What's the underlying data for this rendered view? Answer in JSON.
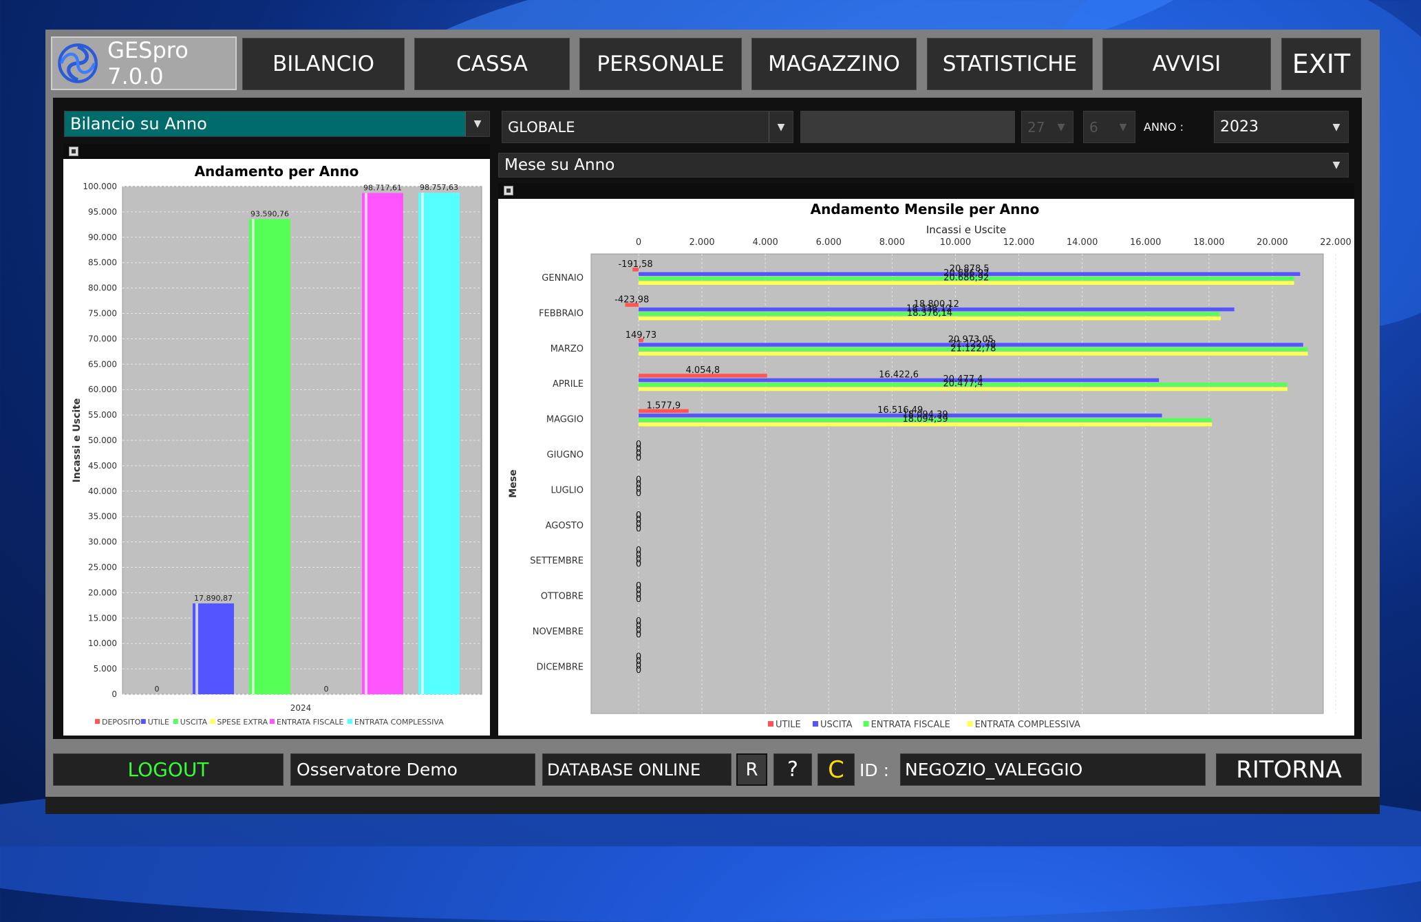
{
  "app": {
    "title": "GESpro 7.0.0"
  },
  "top_nav": {
    "items": [
      {
        "label": "BILANCIO",
        "name": "nav-bilancio"
      },
      {
        "label": "CASSA",
        "name": "nav-cassa"
      },
      {
        "label": "PERSONALE",
        "name": "nav-personale"
      },
      {
        "label": "MAGAZZINO",
        "name": "nav-magazzino"
      },
      {
        "label": "STATISTICHE",
        "name": "nav-statistiche"
      },
      {
        "label": "AVVISI",
        "name": "nav-avvisi"
      }
    ],
    "exit_label": "EXIT"
  },
  "filters": {
    "view_mode": "Bilancio su Anno",
    "scope": "GLOBALE",
    "text_field": "",
    "day": "27",
    "month": "6",
    "year_label": "ANNO :",
    "year": "2023",
    "sub_view": "Mese su Anno"
  },
  "colors": {
    "deposito": "#ff5555",
    "utile": "#5555ff",
    "uscita": "#55ff55",
    "spese_extra": "#ffff55",
    "entrata_fiscale": "#ff55ff",
    "entrata_complessiva": "#55ffff",
    "content_bg": "#111111",
    "plot_bg": "#c0c0c0",
    "view_combo_bg": "#006b6b",
    "logout_text": "#33ff33",
    "c_button_text": "#ffdd00"
  },
  "chart_data": [
    {
      "type": "bar",
      "title": "Andamento  per Anno",
      "ylabel": "Incassi e Uscite",
      "xlabel": "",
      "categories": [
        "2024"
      ],
      "ylim": [
        0,
        100000
      ],
      "y_ticks": [
        "0",
        "5.000",
        "10.000",
        "15.000",
        "20.000",
        "25.000",
        "30.000",
        "35.000",
        "40.000",
        "45.000",
        "50.000",
        "55.000",
        "60.000",
        "65.000",
        "70.000",
        "75.000",
        "80.000",
        "85.000",
        "90.000",
        "95.000",
        "100.000"
      ],
      "grid": true,
      "legend_position": "bottom",
      "series": [
        {
          "name": "DEPOSITO",
          "key": "deposito",
          "value": 0,
          "label": "0"
        },
        {
          "name": "UTILE",
          "key": "utile",
          "value": 17890.87,
          "label": "17.890,87"
        },
        {
          "name": "USCITA",
          "key": "uscita",
          "value": 93590.76,
          "label": "93.590,76"
        },
        {
          "name": "SPESE EXTRA",
          "key": "spese_extra",
          "value": 0,
          "label": "0"
        },
        {
          "name": "ENTRATA FISCALE",
          "key": "entrata_fiscale",
          "value": 98717.61,
          "label": "98.717,61"
        },
        {
          "name": "ENTRATA COMPLESSIVA",
          "key": "entrata_complessiva",
          "value": 98757.63,
          "label": "98.757,63"
        }
      ]
    },
    {
      "type": "bar",
      "orientation": "horizontal",
      "title": "Andamento Mensile per Anno",
      "xlabel": "Incassi e Uscite",
      "ylabel": "Mese",
      "xlim": [
        0,
        22000
      ],
      "x_ticks": [
        "0",
        "2.000",
        "4.000",
        "6.000",
        "8.000",
        "10.000",
        "12.000",
        "14.000",
        "16.000",
        "18.000",
        "20.000",
        "22.000"
      ],
      "grid": true,
      "legend_position": "bottom",
      "categories": [
        "GENNAIO",
        "FEBBRAIO",
        "MARZO",
        "APRILE",
        "MAGGIO",
        "GIUGNO",
        "LUGLIO",
        "AGOSTO",
        "SETTEMBRE",
        "OTTOBRE",
        "NOVEMBRE",
        "DICEMBRE"
      ],
      "series": [
        {
          "name": "UTILE",
          "key": "deposito",
          "values": [
            -191.58,
            -423.98,
            149.73,
            4054.8,
            1577.9,
            0,
            0,
            0,
            0,
            0,
            0,
            0
          ],
          "labels": [
            "-191,58",
            "-423,98",
            "149,73",
            "4.054,8",
            "1.577,9",
            "0",
            "0",
            "0",
            "0",
            "0",
            "0",
            "0"
          ]
        },
        {
          "name": "USCITA",
          "key": "utile",
          "values": [
            20878.5,
            18800.12,
            20973.05,
            16422.6,
            16516.49,
            0,
            0,
            0,
            0,
            0,
            0,
            0
          ],
          "labels": [
            "20.878,5",
            "18.800,12",
            "20.973,05",
            "16.422,6",
            "16.516,49",
            "0",
            "0",
            "0",
            "0",
            "0",
            "0",
            "0"
          ]
        },
        {
          "name": "ENTRATA FISCALE",
          "key": "uscita",
          "values": [
            20686.92,
            18336.12,
            21122.78,
            20477.4,
            18094.39,
            0,
            0,
            0,
            0,
            0,
            0,
            0
          ],
          "labels": [
            "20.686,92",
            "18.336,12",
            "21.122,78",
            "20.477,4",
            "18.094,39",
            "0",
            "0",
            "0",
            "0",
            "0",
            "0",
            "0"
          ]
        },
        {
          "name": "ENTRATA COMPLESSIVA",
          "key": "spese_extra",
          "values": [
            20686.92,
            18376.14,
            21122.78,
            20477.4,
            18094.39,
            0,
            0,
            0,
            0,
            0,
            0,
            0
          ],
          "labels": [
            "20.686,92",
            "18.376,14",
            "21.122,78",
            "20.477,4",
            "18.094,39",
            "0",
            "0",
            "0",
            "0",
            "0",
            "0",
            "0"
          ]
        }
      ]
    }
  ],
  "status_bar": {
    "logout": "LOGOUT",
    "user": "Osservatore  Demo",
    "db_status": "DATABASE ONLINE",
    "r_button": "R",
    "help_button": "?",
    "c_button": "C",
    "id_label": "ID :",
    "id_value": "NEGOZIO_VALEGGIO",
    "back_button": "RITORNA"
  }
}
